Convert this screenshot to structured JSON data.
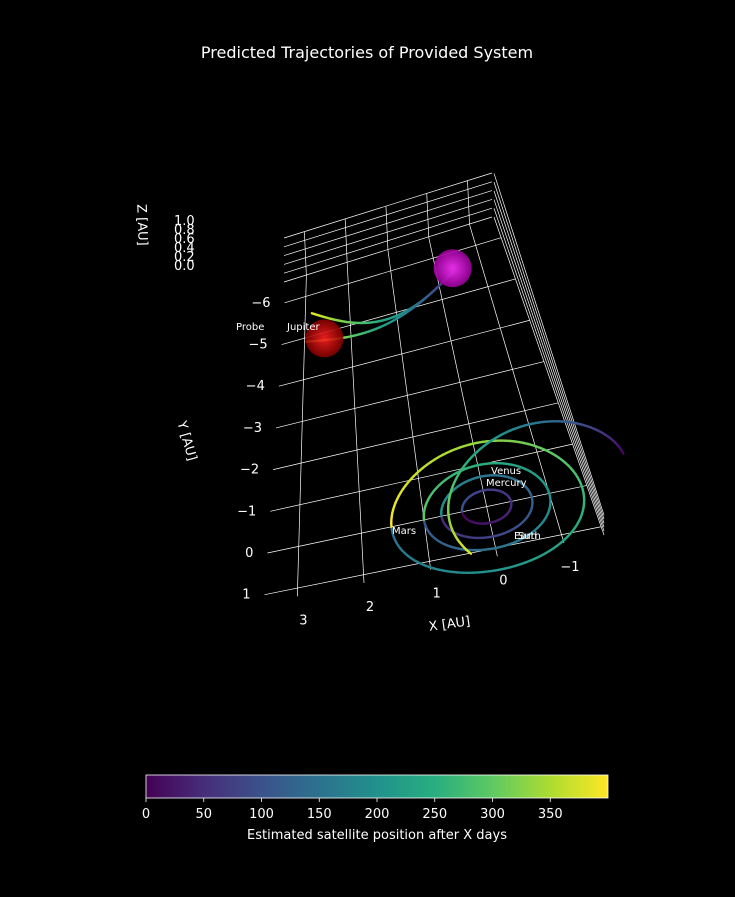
{
  "chart_data": {
    "type": "3d-line",
    "title": "Predicted Trajectories of Provided System",
    "xlabel": "X [AU]",
    "ylabel": "Y [AU]",
    "zlabel": "Z [AU]",
    "x_ticks": [
      "3",
      "2",
      "1",
      "0",
      "−1"
    ],
    "y_ticks": [
      "−6",
      "−5",
      "−4",
      "−3",
      "−2",
      "−1",
      "0",
      "1"
    ],
    "z_ticks": [
      "0.0",
      "0.2",
      "0.4",
      "0.6",
      "0.8",
      "1.0"
    ],
    "xlim": [
      3.5,
      -1.6
    ],
    "ylim": [
      -6.5,
      1.2
    ],
    "zlim": [
      0,
      1
    ],
    "grid": true,
    "colormap": "viridis",
    "colorbar": {
      "label": "Estimated satellite position after X days",
      "ticks": [
        "0",
        "50",
        "100",
        "150",
        "200",
        "250",
        "300",
        "350"
      ],
      "range": [
        0,
        400
      ]
    },
    "bodies": [
      {
        "name": "Mercury",
        "orbit_radius_au": 0.39
      },
      {
        "name": "Venus",
        "orbit_radius_au": 0.72
      },
      {
        "name": "Earth",
        "orbit_radius_au": 1.0
      },
      {
        "name": "Mars",
        "orbit_radius_au": 1.52
      },
      {
        "name": "Jupiter",
        "orbit_radius_au": 5.2
      },
      {
        "name": "Probe",
        "note": "spiral trajectory"
      }
    ],
    "annotations": [
      "Probe",
      "Jupiter",
      "Venus",
      "Mercury",
      "Mars",
      "Earth",
      "Sun"
    ],
    "spheres": [
      {
        "color": "#ff00ff",
        "label": "start"
      },
      {
        "color": "#e00000",
        "label": "end"
      }
    ]
  }
}
